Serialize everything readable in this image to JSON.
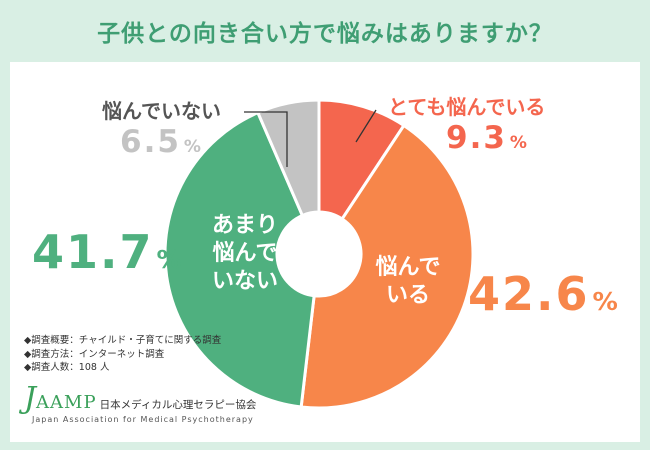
{
  "title": "子供との向き合い方で悩みはありますか？",
  "chart_data": {
    "type": "pie",
    "style": "donut",
    "title": "子供との向き合い方で悩みはありますか？",
    "series": [
      {
        "name": "とても悩んでいる",
        "value": 9.3,
        "color": "#f4664e"
      },
      {
        "name": "悩んでいる",
        "value": 42.6,
        "color": "#f7864a"
      },
      {
        "name": "あまり悩んでいない",
        "value": 41.7,
        "color": "#4fb07f"
      },
      {
        "name": "悩んでいない",
        "value": 6.5,
        "color": "#c3c3c3"
      }
    ],
    "labels": {
      "very_worried": "とても悩んでいる",
      "very_worried_pct": "9.3",
      "worried_line1": "悩んで",
      "worried_line2": "いる",
      "worried_pct": "42.6",
      "not_much_line1": "あまり",
      "not_much_line2": "悩んで",
      "not_much_line3": "いない",
      "not_much_pct": "41.7",
      "not_worried": "悩んでいない",
      "not_worried_pct": "6.5",
      "unit": "%"
    }
  },
  "survey": {
    "summary": "◆調査概要：チャイルド・子育てに関する調査",
    "method": "◆調査方法：インターネット調査",
    "count": "◆調査人数：108 人"
  },
  "logo": {
    "mark_j": "J",
    "mark_rest": "AAMP",
    "jp_name": "日本メディカル心理セラピー協会",
    "en_name": "Japan Association for Medical Psychotherapy"
  },
  "colors": {
    "background": "#d9efe4",
    "title": "#3f9e73",
    "very_worried": "#f4664e",
    "worried": "#f7864a",
    "not_much": "#4fb07f",
    "not_worried": "#c3c3c3"
  }
}
